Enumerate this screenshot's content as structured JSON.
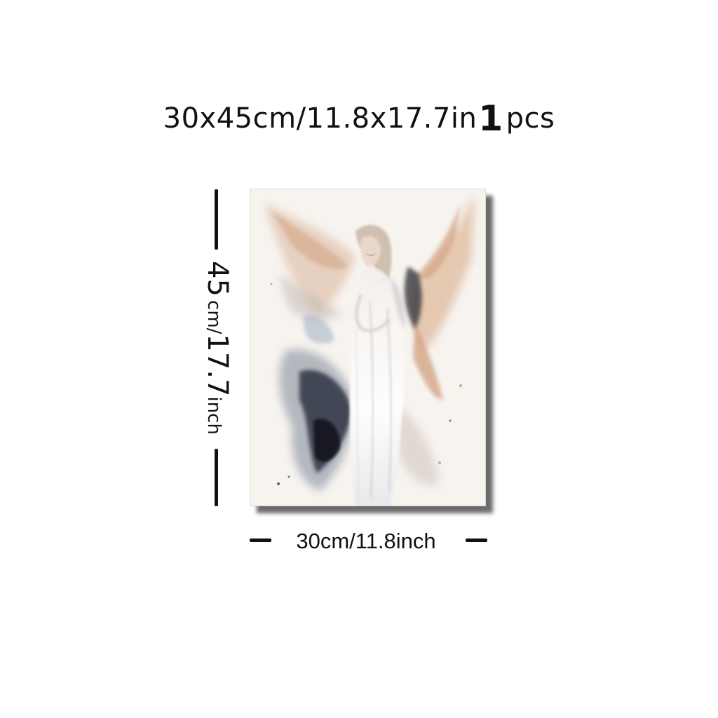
{
  "title": {
    "size_text": "30x45cm/11.8x17.7in",
    "quantity_number": "1",
    "quantity_unit": "pcs"
  },
  "height_dimension": {
    "value": "45",
    "unit_text": "cm/",
    "inch_value": "17.7",
    "inch_unit": "inch"
  },
  "width_dimension": {
    "label": "30cm/11.8inch"
  },
  "artwork": {
    "subject": "watercolor-angel-painting",
    "colors": {
      "paper": "#f7f3ef",
      "rust": "#c7875c",
      "ink": "#1e2430",
      "slate": "#7d8898",
      "robe": "#ffffff"
    }
  }
}
